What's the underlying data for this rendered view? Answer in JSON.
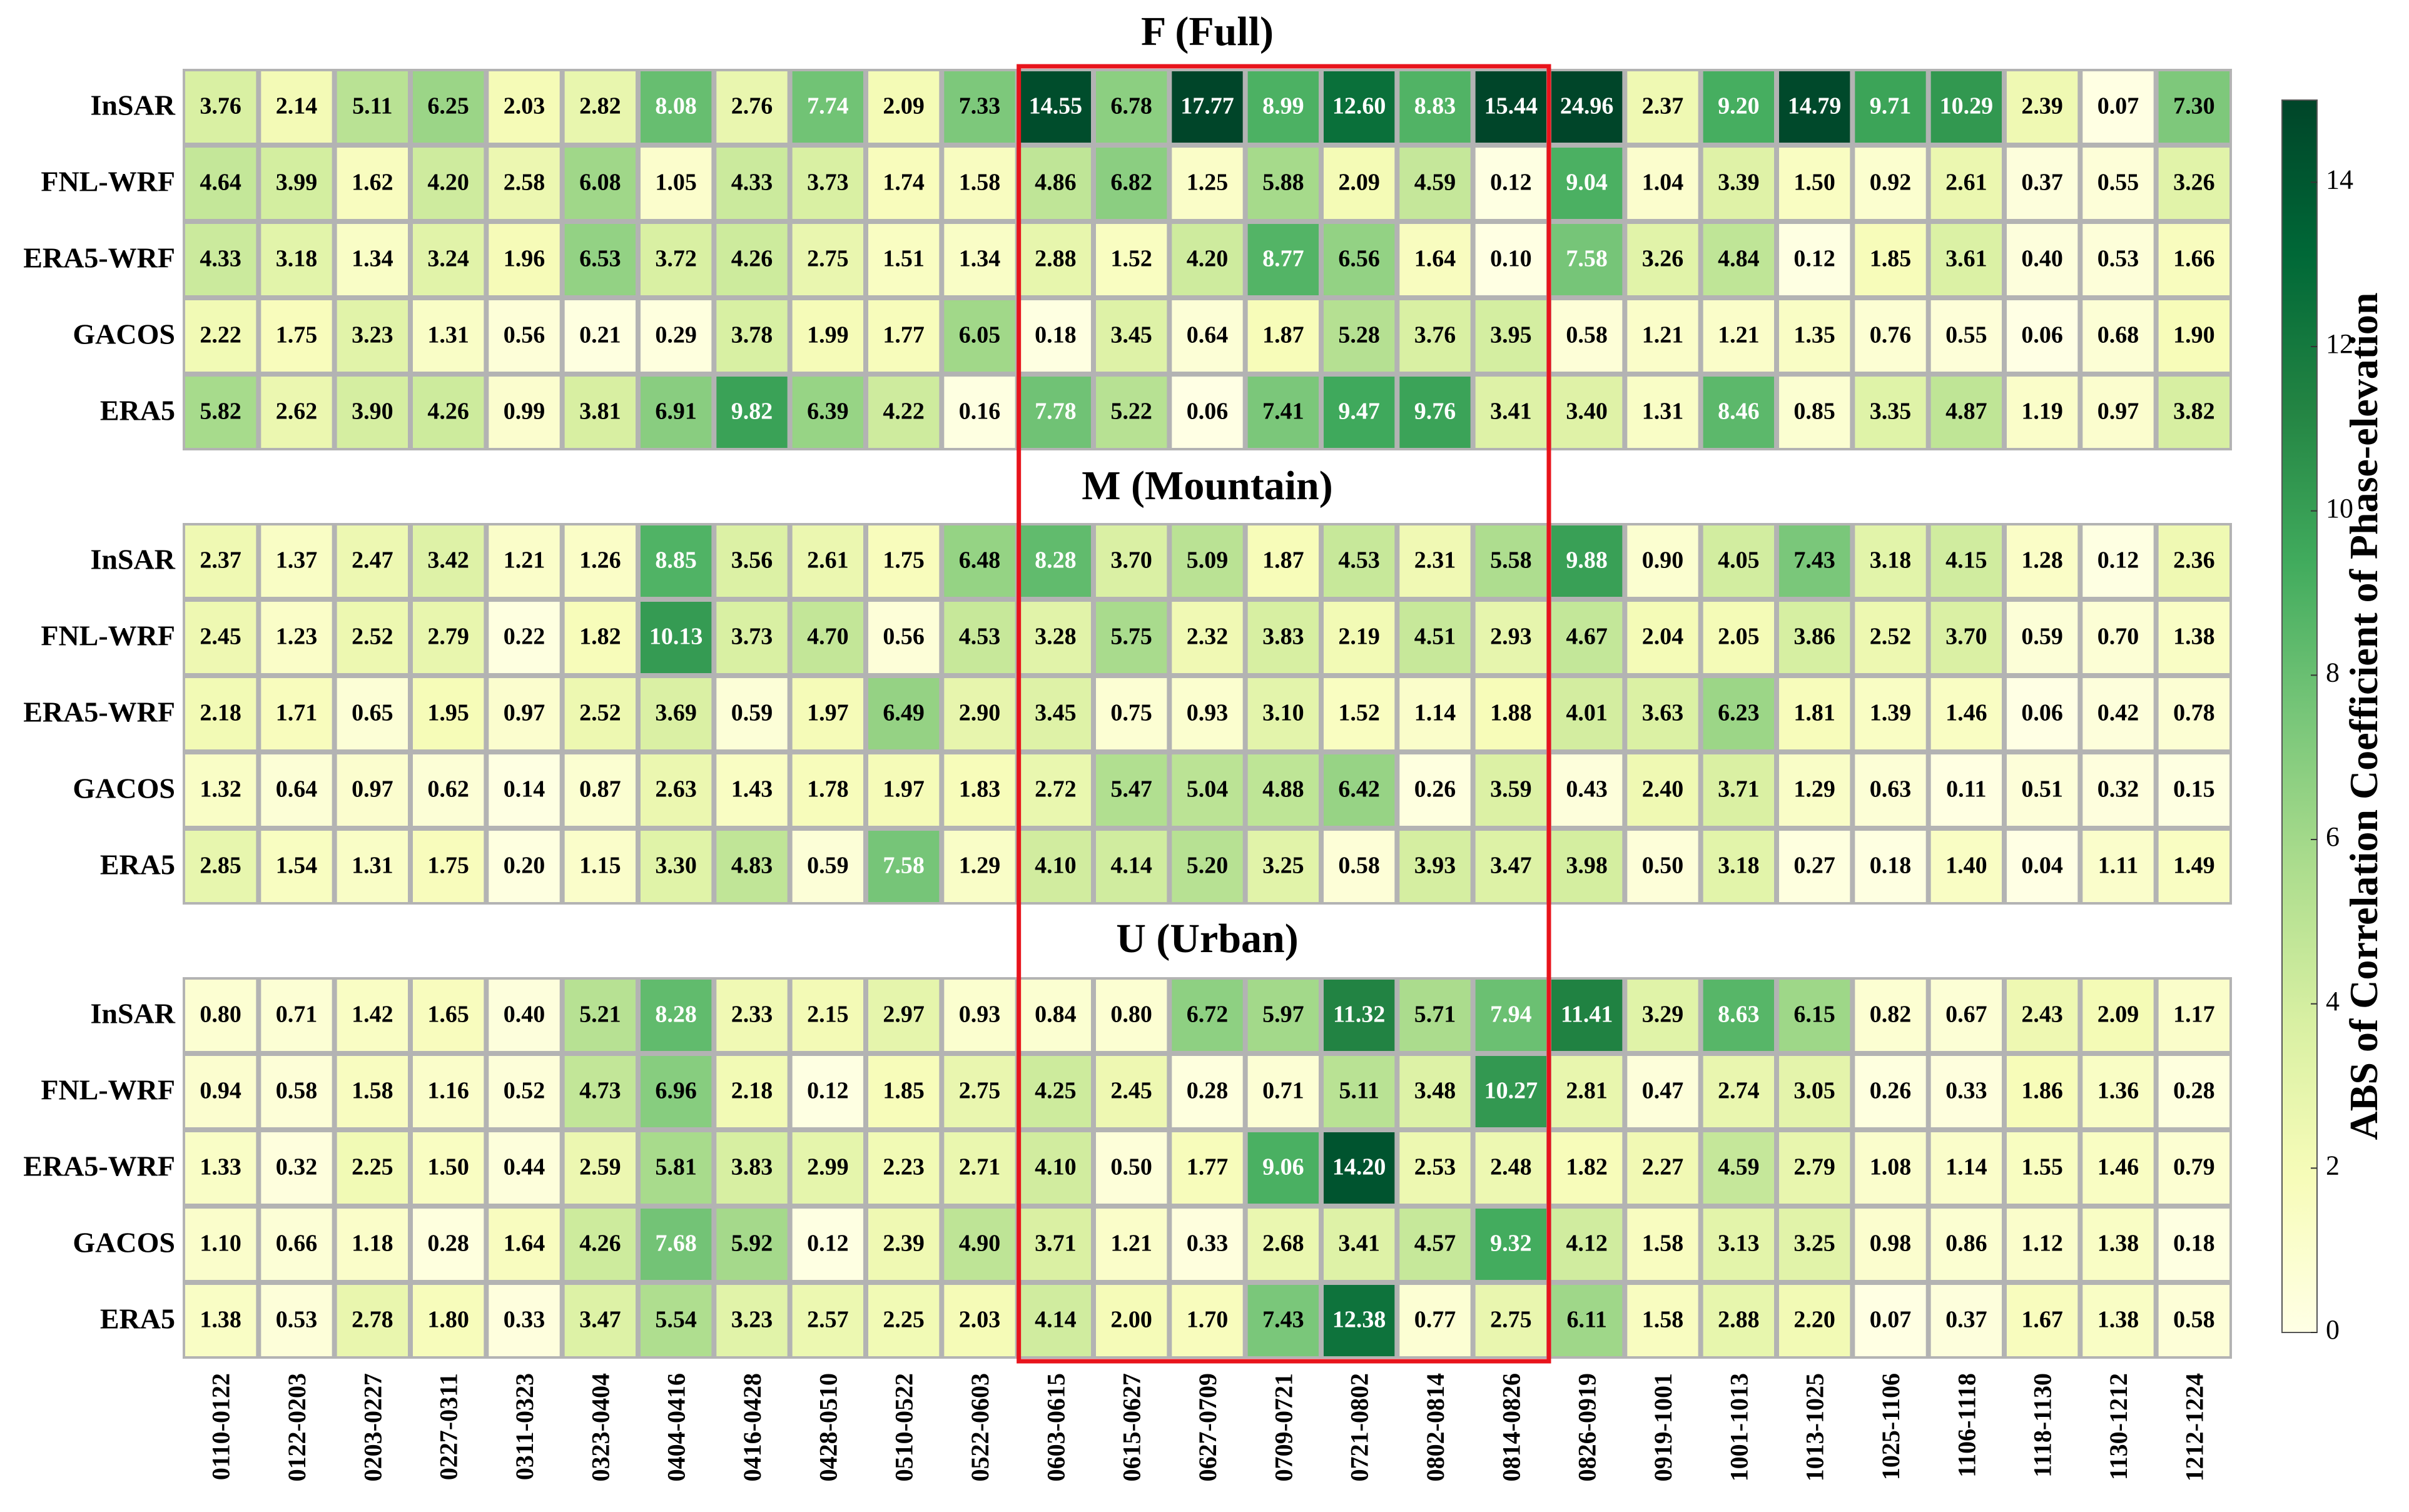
{
  "chart_data": {
    "type": "heatmap",
    "columns": [
      "0110-0122",
      "0122-0203",
      "0203-0227",
      "0227-0311",
      "0311-0323",
      "0323-0404",
      "0404-0416",
      "0416-0428",
      "0428-0510",
      "0510-0522",
      "0522-0603",
      "0603-0615",
      "0615-0627",
      "0627-0709",
      "0709-0721",
      "0721-0802",
      "0802-0814",
      "0814-0826",
      "0826-0919",
      "0919-1001",
      "1001-1013",
      "1013-1025",
      "1025-1106",
      "1106-1118",
      "1118-1130",
      "1130-1212",
      "1212-1224"
    ],
    "rows": [
      "InSAR",
      "FNL-WRF",
      "ERA5-WRF",
      "GACOS",
      "ERA5"
    ],
    "panels": [
      {
        "title": "F (Full)",
        "values": [
          [
            3.76,
            2.14,
            5.11,
            6.25,
            2.03,
            2.82,
            8.08,
            2.76,
            7.74,
            2.09,
            7.33,
            14.55,
            6.78,
            17.77,
            8.99,
            12.6,
            8.83,
            15.44,
            24.96,
            2.37,
            9.2,
            14.79,
            9.71,
            10.29,
            2.39,
            0.07,
            7.3
          ],
          [
            4.64,
            3.99,
            1.62,
            4.2,
            2.58,
            6.08,
            1.05,
            4.33,
            3.73,
            1.74,
            1.58,
            4.86,
            6.82,
            1.25,
            5.88,
            2.09,
            4.59,
            0.12,
            9.04,
            1.04,
            3.39,
            1.5,
            0.92,
            2.61,
            0.37,
            0.55,
            3.26
          ],
          [
            4.33,
            3.18,
            1.34,
            3.24,
            1.96,
            6.53,
            3.72,
            4.26,
            2.75,
            1.51,
            1.34,
            2.88,
            1.52,
            4.2,
            8.77,
            6.56,
            1.64,
            0.1,
            7.58,
            3.26,
            4.84,
            0.12,
            1.85,
            3.61,
            0.4,
            0.53,
            1.66
          ],
          [
            2.22,
            1.75,
            3.23,
            1.31,
            0.56,
            0.21,
            0.29,
            3.78,
            1.99,
            1.77,
            6.05,
            0.18,
            3.45,
            0.64,
            1.87,
            5.28,
            3.76,
            3.95,
            0.58,
            1.21,
            1.21,
            1.35,
            0.76,
            0.55,
            0.06,
            0.68,
            1.9
          ],
          [
            5.82,
            2.62,
            3.9,
            4.26,
            0.99,
            3.81,
            6.91,
            9.82,
            6.39,
            4.22,
            0.16,
            7.78,
            5.22,
            0.06,
            7.41,
            9.47,
            9.76,
            3.41,
            3.4,
            1.31,
            8.46,
            0.85,
            3.35,
            4.87,
            1.19,
            0.97,
            3.82
          ]
        ]
      },
      {
        "title": "M (Mountain)",
        "values": [
          [
            2.37,
            1.37,
            2.47,
            3.42,
            1.21,
            1.26,
            8.85,
            3.56,
            2.61,
            1.75,
            6.48,
            8.28,
            3.7,
            5.09,
            1.87,
            4.53,
            2.31,
            5.58,
            9.88,
            0.9,
            4.05,
            7.43,
            3.18,
            4.15,
            1.28,
            0.12,
            2.36
          ],
          [
            2.45,
            1.23,
            2.52,
            2.79,
            0.22,
            1.82,
            10.13,
            3.73,
            4.7,
            0.56,
            4.53,
            3.28,
            5.75,
            2.32,
            3.83,
            2.19,
            4.51,
            2.93,
            4.67,
            2.04,
            2.05,
            3.86,
            2.52,
            3.7,
            0.59,
            0.7,
            1.38
          ],
          [
            2.18,
            1.71,
            0.65,
            1.95,
            0.97,
            2.52,
            3.69,
            0.59,
            1.97,
            6.49,
            2.9,
            3.45,
            0.75,
            0.93,
            3.1,
            1.52,
            1.14,
            1.88,
            4.01,
            3.63,
            6.23,
            1.81,
            1.39,
            1.46,
            0.06,
            0.42,
            0.78
          ],
          [
            1.32,
            0.64,
            0.97,
            0.62,
            0.14,
            0.87,
            2.63,
            1.43,
            1.78,
            1.97,
            1.83,
            2.72,
            5.47,
            5.04,
            4.88,
            6.42,
            0.26,
            3.59,
            0.43,
            2.4,
            3.71,
            1.29,
            0.63,
            0.11,
            0.51,
            0.32,
            0.15
          ],
          [
            2.85,
            1.54,
            1.31,
            1.75,
            0.2,
            1.15,
            3.3,
            4.83,
            0.59,
            7.58,
            1.29,
            4.1,
            4.14,
            5.2,
            3.25,
            0.58,
            3.93,
            3.47,
            3.98,
            0.5,
            3.18,
            0.27,
            0.18,
            1.4,
            0.04,
            1.11,
            1.49
          ]
        ]
      },
      {
        "title": "U (Urban)",
        "values": [
          [
            0.8,
            0.71,
            1.42,
            1.65,
            0.4,
            5.21,
            8.28,
            2.33,
            2.15,
            2.97,
            0.93,
            0.84,
            0.8,
            6.72,
            5.97,
            11.32,
            5.71,
            7.94,
            11.41,
            3.29,
            8.63,
            6.15,
            0.82,
            0.67,
            2.43,
            2.09,
            1.17
          ],
          [
            0.94,
            0.58,
            1.58,
            1.16,
            0.52,
            4.73,
            6.96,
            2.18,
            0.12,
            1.85,
            2.75,
            4.25,
            2.45,
            0.28,
            0.71,
            5.11,
            3.48,
            10.27,
            2.81,
            0.47,
            2.74,
            3.05,
            0.26,
            0.33,
            1.86,
            1.36,
            0.28
          ],
          [
            1.33,
            0.32,
            2.25,
            1.5,
            0.44,
            2.59,
            5.81,
            3.83,
            2.99,
            2.23,
            2.71,
            4.1,
            0.5,
            1.77,
            9.06,
            14.2,
            2.53,
            2.48,
            1.82,
            2.27,
            4.59,
            2.79,
            1.08,
            1.14,
            1.55,
            1.46,
            0.79
          ],
          [
            1.1,
            0.66,
            1.18,
            0.28,
            1.64,
            4.26,
            7.68,
            5.92,
            0.12,
            2.39,
            4.9,
            3.71,
            1.21,
            0.33,
            2.68,
            3.41,
            4.57,
            9.32,
            4.12,
            1.58,
            3.13,
            3.25,
            0.98,
            0.86,
            1.12,
            1.38,
            0.18
          ],
          [
            1.38,
            0.53,
            2.78,
            1.8,
            0.33,
            3.47,
            5.54,
            3.23,
            2.57,
            2.25,
            2.03,
            4.14,
            2.0,
            1.7,
            7.43,
            12.38,
            0.77,
            2.75,
            6.11,
            1.58,
            2.88,
            2.2,
            0.07,
            0.37,
            1.67,
            1.38,
            0.58
          ]
        ]
      }
    ],
    "colorbar": {
      "label": "ABS of Correlation Coefficient of Phase-elevation",
      "range": [
        0,
        15
      ],
      "ticks": [
        0,
        2,
        4,
        6,
        8,
        10,
        12,
        14
      ],
      "colors": [
        "#ffffe5",
        "#f7fcb9",
        "#d9f0a3",
        "#addd8e",
        "#78c679",
        "#41ab5d",
        "#238443",
        "#006837",
        "#004529"
      ]
    },
    "highlight": {
      "from_column": "0603-0615",
      "to_column": "0814-0826",
      "color": "#e8141c"
    },
    "cell_border_color": "#b3b3b3"
  }
}
